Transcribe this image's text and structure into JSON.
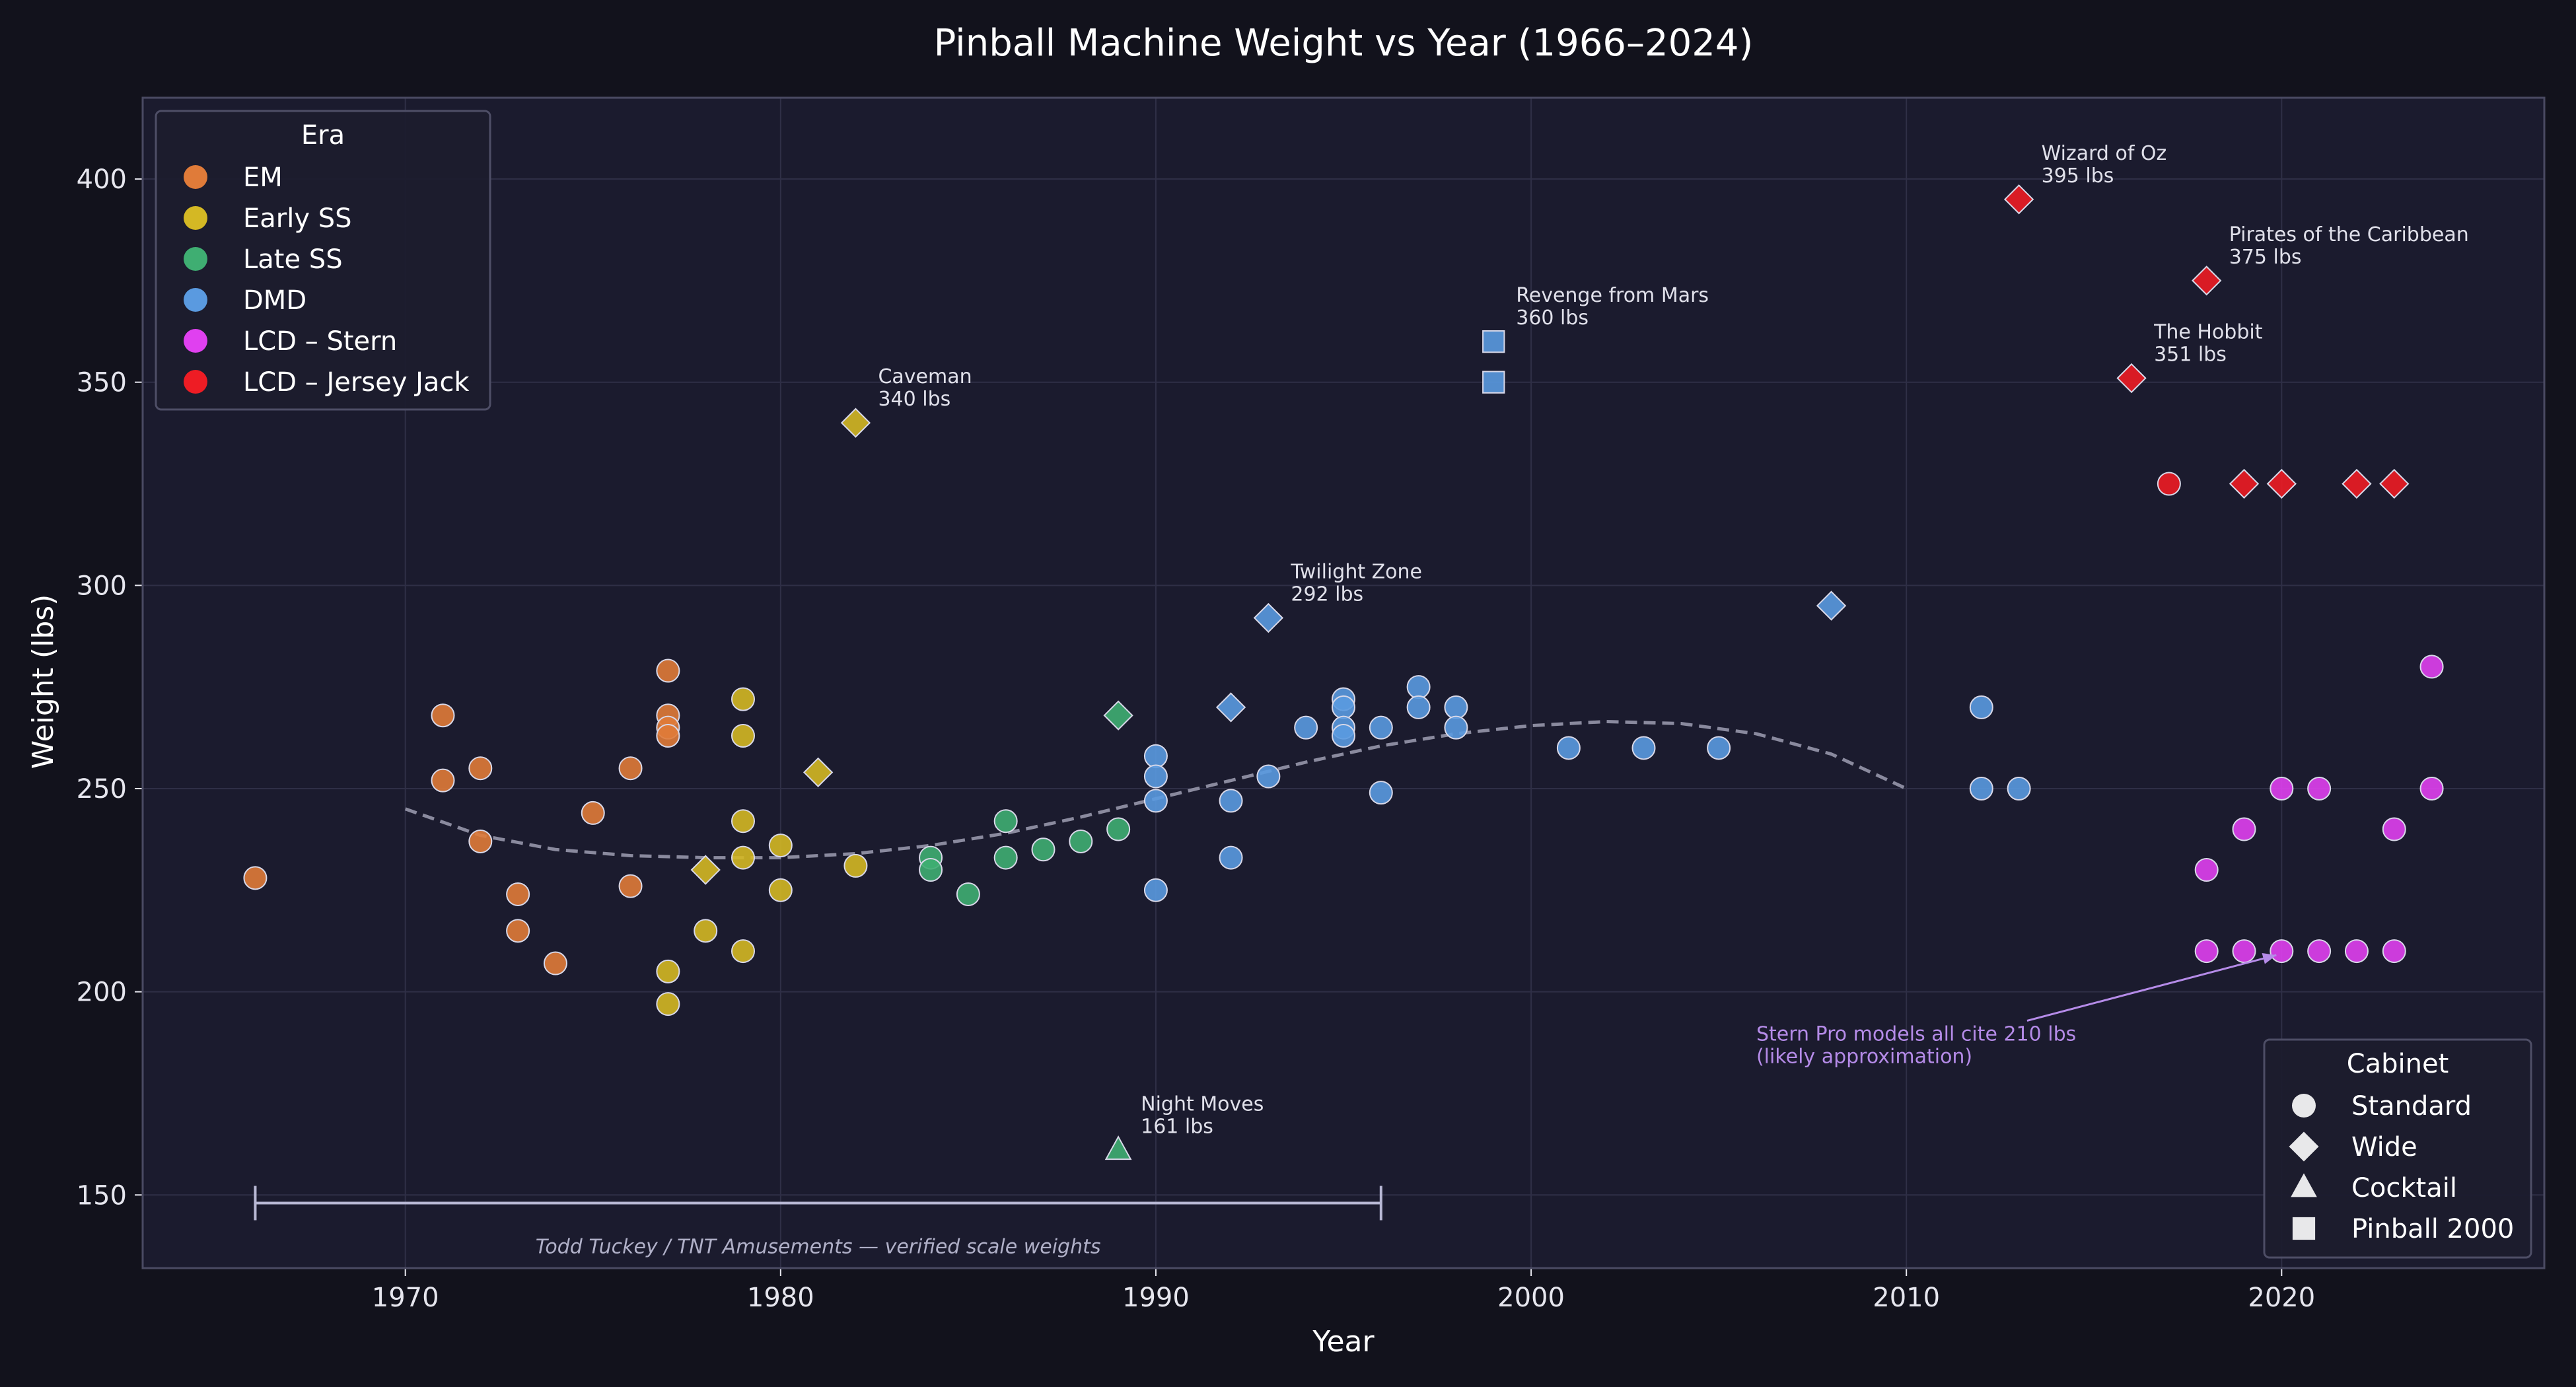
{
  "chart_data": {
    "type": "scatter",
    "title": "Pinball Machine Weight vs Year (1966–2024)",
    "xlabel": "Year",
    "ylabel": "Weight (lbs)",
    "xlim": [
      1963,
      2027
    ],
    "ylim": [
      132,
      420
    ],
    "xticks": [
      1970,
      1980,
      1990,
      2000,
      2010,
      2020
    ],
    "yticks": [
      150,
      200,
      250,
      300,
      350,
      400
    ],
    "grid": true,
    "colors": {
      "figure_bg": "#12121c",
      "plot_bg": "#1b1b2e",
      "grid": "#2f2f46",
      "text": "#e6e6ee",
      "trend": "#8a8a9e",
      "annotation_note": "#b58be8"
    },
    "era_legend": {
      "title": "Era",
      "placement": "upper-left",
      "entries": [
        {
          "key": "EM",
          "label": "EM",
          "color": "#e07b39"
        },
        {
          "key": "EarlySS",
          "label": "Early SS",
          "color": "#d4b824"
        },
        {
          "key": "LateSS",
          "label": "Late SS",
          "color": "#3fae72"
        },
        {
          "key": "DMD",
          "label": "DMD",
          "color": "#5a9ae0"
        },
        {
          "key": "LCDStern",
          "label": "LCD – Stern",
          "color": "#e040f0"
        },
        {
          "key": "LCDJJ",
          "label": "LCD – Jersey Jack",
          "color": "#ee1c24"
        }
      ]
    },
    "cabinet_legend": {
      "title": "Cabinet",
      "placement": "lower-right",
      "entries": [
        {
          "shape": "circle",
          "label": "Standard"
        },
        {
          "shape": "diamond",
          "label": "Wide"
        },
        {
          "shape": "triangle",
          "label": "Cocktail"
        },
        {
          "shape": "square",
          "label": "Pinball 2000"
        }
      ]
    },
    "trend": {
      "style": "dashed",
      "x": [
        1970,
        1972,
        1974,
        1976,
        1978,
        1980,
        1982,
        1984,
        1986,
        1988,
        1990,
        1992,
        1994,
        1996,
        1998,
        2000,
        2002,
        2004,
        2006,
        2008,
        2010
      ],
      "y": [
        245,
        238.5,
        235,
        233.5,
        233,
        233,
        234,
        236,
        239,
        243,
        247.5,
        252,
        256.5,
        260.5,
        263.5,
        265.5,
        266.5,
        266,
        263.5,
        258.5,
        250
      ]
    },
    "series": [
      {
        "era": "EM",
        "shape": "circle",
        "points": [
          [
            1966,
            228
          ],
          [
            1971,
            268
          ],
          [
            1971,
            252
          ],
          [
            1972,
            255
          ],
          [
            1972,
            237
          ],
          [
            1973,
            224
          ],
          [
            1973,
            215
          ],
          [
            1974,
            207
          ],
          [
            1975,
            244
          ],
          [
            1976,
            255
          ],
          [
            1976,
            226
          ],
          [
            1977,
            279
          ],
          [
            1977,
            268
          ],
          [
            1977,
            265
          ],
          [
            1977,
            263
          ]
        ]
      },
      {
        "era": "EarlySS",
        "shape": "circle",
        "points": [
          [
            1977,
            205
          ],
          [
            1977,
            197
          ],
          [
            1978,
            215
          ],
          [
            1979,
            272
          ],
          [
            1979,
            263
          ],
          [
            1979,
            242
          ],
          [
            1979,
            233
          ],
          [
            1979,
            210
          ],
          [
            1980,
            236
          ],
          [
            1980,
            225
          ],
          [
            1982,
            231
          ]
        ]
      },
      {
        "era": "EarlySS",
        "shape": "diamond",
        "points": [
          [
            1978,
            230
          ],
          [
            1981,
            254
          ],
          [
            1982,
            340
          ]
        ]
      },
      {
        "era": "LateSS",
        "shape": "circle",
        "points": [
          [
            1984,
            233
          ],
          [
            1984,
            230
          ],
          [
            1985,
            224
          ],
          [
            1986,
            242
          ],
          [
            1986,
            233
          ],
          [
            1987,
            235
          ],
          [
            1988,
            237
          ],
          [
            1989,
            240
          ]
        ]
      },
      {
        "era": "LateSS",
        "shape": "diamond",
        "points": [
          [
            1989,
            268
          ]
        ]
      },
      {
        "era": "LateSS",
        "shape": "triangle",
        "points": [
          [
            1989,
            161
          ]
        ]
      },
      {
        "era": "DMD",
        "shape": "circle",
        "points": [
          [
            1990,
            258
          ],
          [
            1990,
            253
          ],
          [
            1990,
            247
          ],
          [
            1990,
            225
          ],
          [
            1992,
            247
          ],
          [
            1992,
            233
          ],
          [
            1993,
            253
          ],
          [
            1994,
            265
          ],
          [
            1995,
            272
          ],
          [
            1995,
            270
          ],
          [
            1995,
            265
          ],
          [
            1995,
            263
          ],
          [
            1996,
            265
          ],
          [
            1996,
            249
          ],
          [
            1997,
            275
          ],
          [
            1997,
            270
          ],
          [
            1998,
            270
          ],
          [
            1998,
            265
          ],
          [
            2001,
            260
          ],
          [
            2003,
            260
          ],
          [
            2005,
            260
          ],
          [
            2012,
            270
          ],
          [
            2012,
            250
          ],
          [
            2013,
            250
          ]
        ]
      },
      {
        "era": "DMD",
        "shape": "diamond",
        "points": [
          [
            1992,
            270
          ],
          [
            1993,
            292
          ],
          [
            2008,
            295
          ]
        ]
      },
      {
        "era": "DMD",
        "shape": "square",
        "points": [
          [
            1999,
            360
          ],
          [
            1999,
            350
          ]
        ]
      },
      {
        "era": "LCDStern",
        "shape": "circle",
        "points": [
          [
            2018,
            230
          ],
          [
            2018,
            210
          ],
          [
            2019,
            240
          ],
          [
            2019,
            210
          ],
          [
            2020,
            250
          ],
          [
            2020,
            210
          ],
          [
            2021,
            250
          ],
          [
            2021,
            210
          ],
          [
            2022,
            210
          ],
          [
            2023,
            240
          ],
          [
            2023,
            210
          ],
          [
            2024,
            280
          ],
          [
            2024,
            250
          ]
        ]
      },
      {
        "era": "LCDJJ",
        "shape": "diamond",
        "points": [
          [
            2013,
            395
          ],
          [
            2016,
            351
          ],
          [
            2018,
            375
          ],
          [
            2019,
            325
          ],
          [
            2020,
            325
          ],
          [
            2022,
            325
          ],
          [
            2023,
            325
          ]
        ]
      },
      {
        "era": "LCDJJ",
        "shape": "circle",
        "points": [
          [
            2017,
            325
          ]
        ]
      }
    ],
    "annotations": [
      {
        "name": "Wizard of Oz",
        "value": "395 lbs",
        "x": 2013,
        "y": 395
      },
      {
        "name": "Pirates of the Caribbean",
        "value": "375 lbs",
        "x": 2018,
        "y": 375
      },
      {
        "name": "The Hobbit",
        "value": "351 lbs",
        "x": 2016,
        "y": 351
      },
      {
        "name": "Revenge from Mars",
        "value": "360 lbs",
        "x": 1999,
        "y": 360
      },
      {
        "name": "Caveman",
        "value": "340 lbs",
        "x": 1982,
        "y": 340
      },
      {
        "name": "Twilight Zone",
        "value": "292 lbs",
        "x": 1993,
        "y": 292
      },
      {
        "name": "Night Moves",
        "value": "161 lbs",
        "x": 1989,
        "y": 161
      }
    ],
    "stern_note": {
      "lines": [
        "Stern Pro models all cite 210 lbs",
        "(likely approximation)"
      ],
      "text_x": 2006,
      "text_y": 188,
      "arrow_to": [
        2020,
        210
      ]
    },
    "range_bracket": {
      "x_start": 1966,
      "x_end": 1996,
      "y": 148,
      "label": "Todd Tuckey / TNT Amusements — verified scale weights"
    }
  }
}
